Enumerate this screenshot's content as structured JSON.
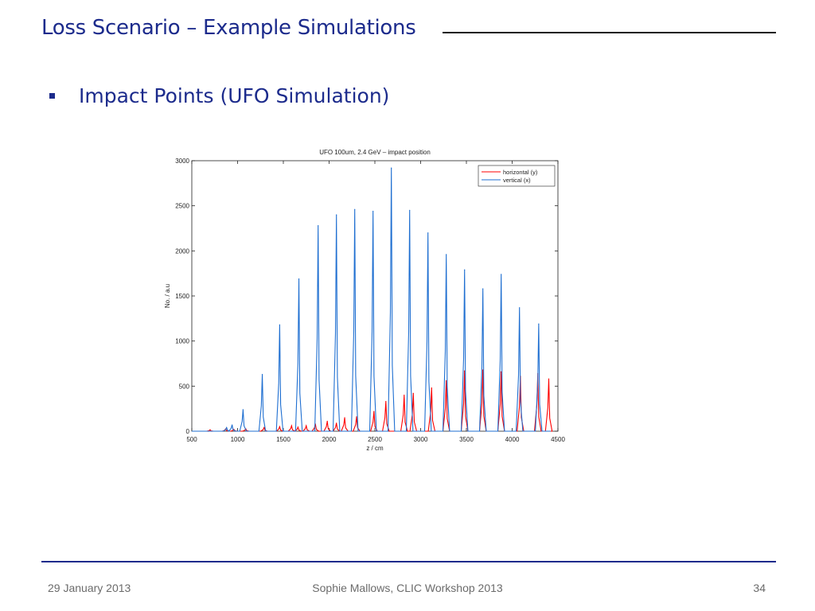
{
  "slide": {
    "title": "Loss Scenario – Example Simulations",
    "bullet": "Impact Points (UFO Simulation)"
  },
  "footer": {
    "date": "29 January 2013",
    "center": "Sophie Mallows, CLIC Workshop 2013",
    "page": "34"
  },
  "colors": {
    "title": "#1c2b8c",
    "horizontal_series": "#ff0000",
    "vertical_series": "#1f6fd1"
  },
  "chart_data": {
    "type": "line",
    "title": "UFO 100um, 2.4 GeV – impact position",
    "xlabel": "z / cm",
    "ylabel": "No. / a.u",
    "xlim": [
      500,
      4500
    ],
    "ylim": [
      0,
      3000
    ],
    "xticks": [
      500,
      1000,
      1500,
      2000,
      2500,
      3000,
      3500,
      4000,
      4500
    ],
    "yticks": [
      0,
      500,
      1000,
      1500,
      2000,
      2500,
      3000
    ],
    "legend_position": "top-right",
    "series": [
      {
        "name": "horizontal (y)",
        "color": "#ff0000",
        "x": [
          700,
          870,
          960,
          1090,
          1290,
          1460,
          1590,
          1660,
          1750,
          1850,
          1980,
          2080,
          2170,
          2300,
          2490,
          2620,
          2820,
          2920,
          3120,
          3280,
          3480,
          3680,
          3880,
          4090,
          4280,
          4400
        ],
        "y": [
          15,
          25,
          20,
          25,
          40,
          50,
          60,
          45,
          60,
          80,
          110,
          90,
          150,
          160,
          220,
          330,
          400,
          420,
          480,
          560,
          670,
          680,
          660,
          610,
          640,
          580
        ]
      },
      {
        "name": "vertical (x)",
        "color": "#1f6fd1",
        "x": [
          880,
          940,
          1060,
          1270,
          1460,
          1670,
          1880,
          2080,
          2280,
          2480,
          2680,
          2880,
          3080,
          3280,
          3480,
          3680,
          3880,
          4080,
          4290
        ],
        "y": [
          40,
          70,
          240,
          630,
          1180,
          1690,
          2280,
          2400,
          2460,
          2440,
          2920,
          2450,
          2200,
          1960,
          1790,
          1580,
          1740,
          1370,
          1190
        ]
      }
    ]
  }
}
